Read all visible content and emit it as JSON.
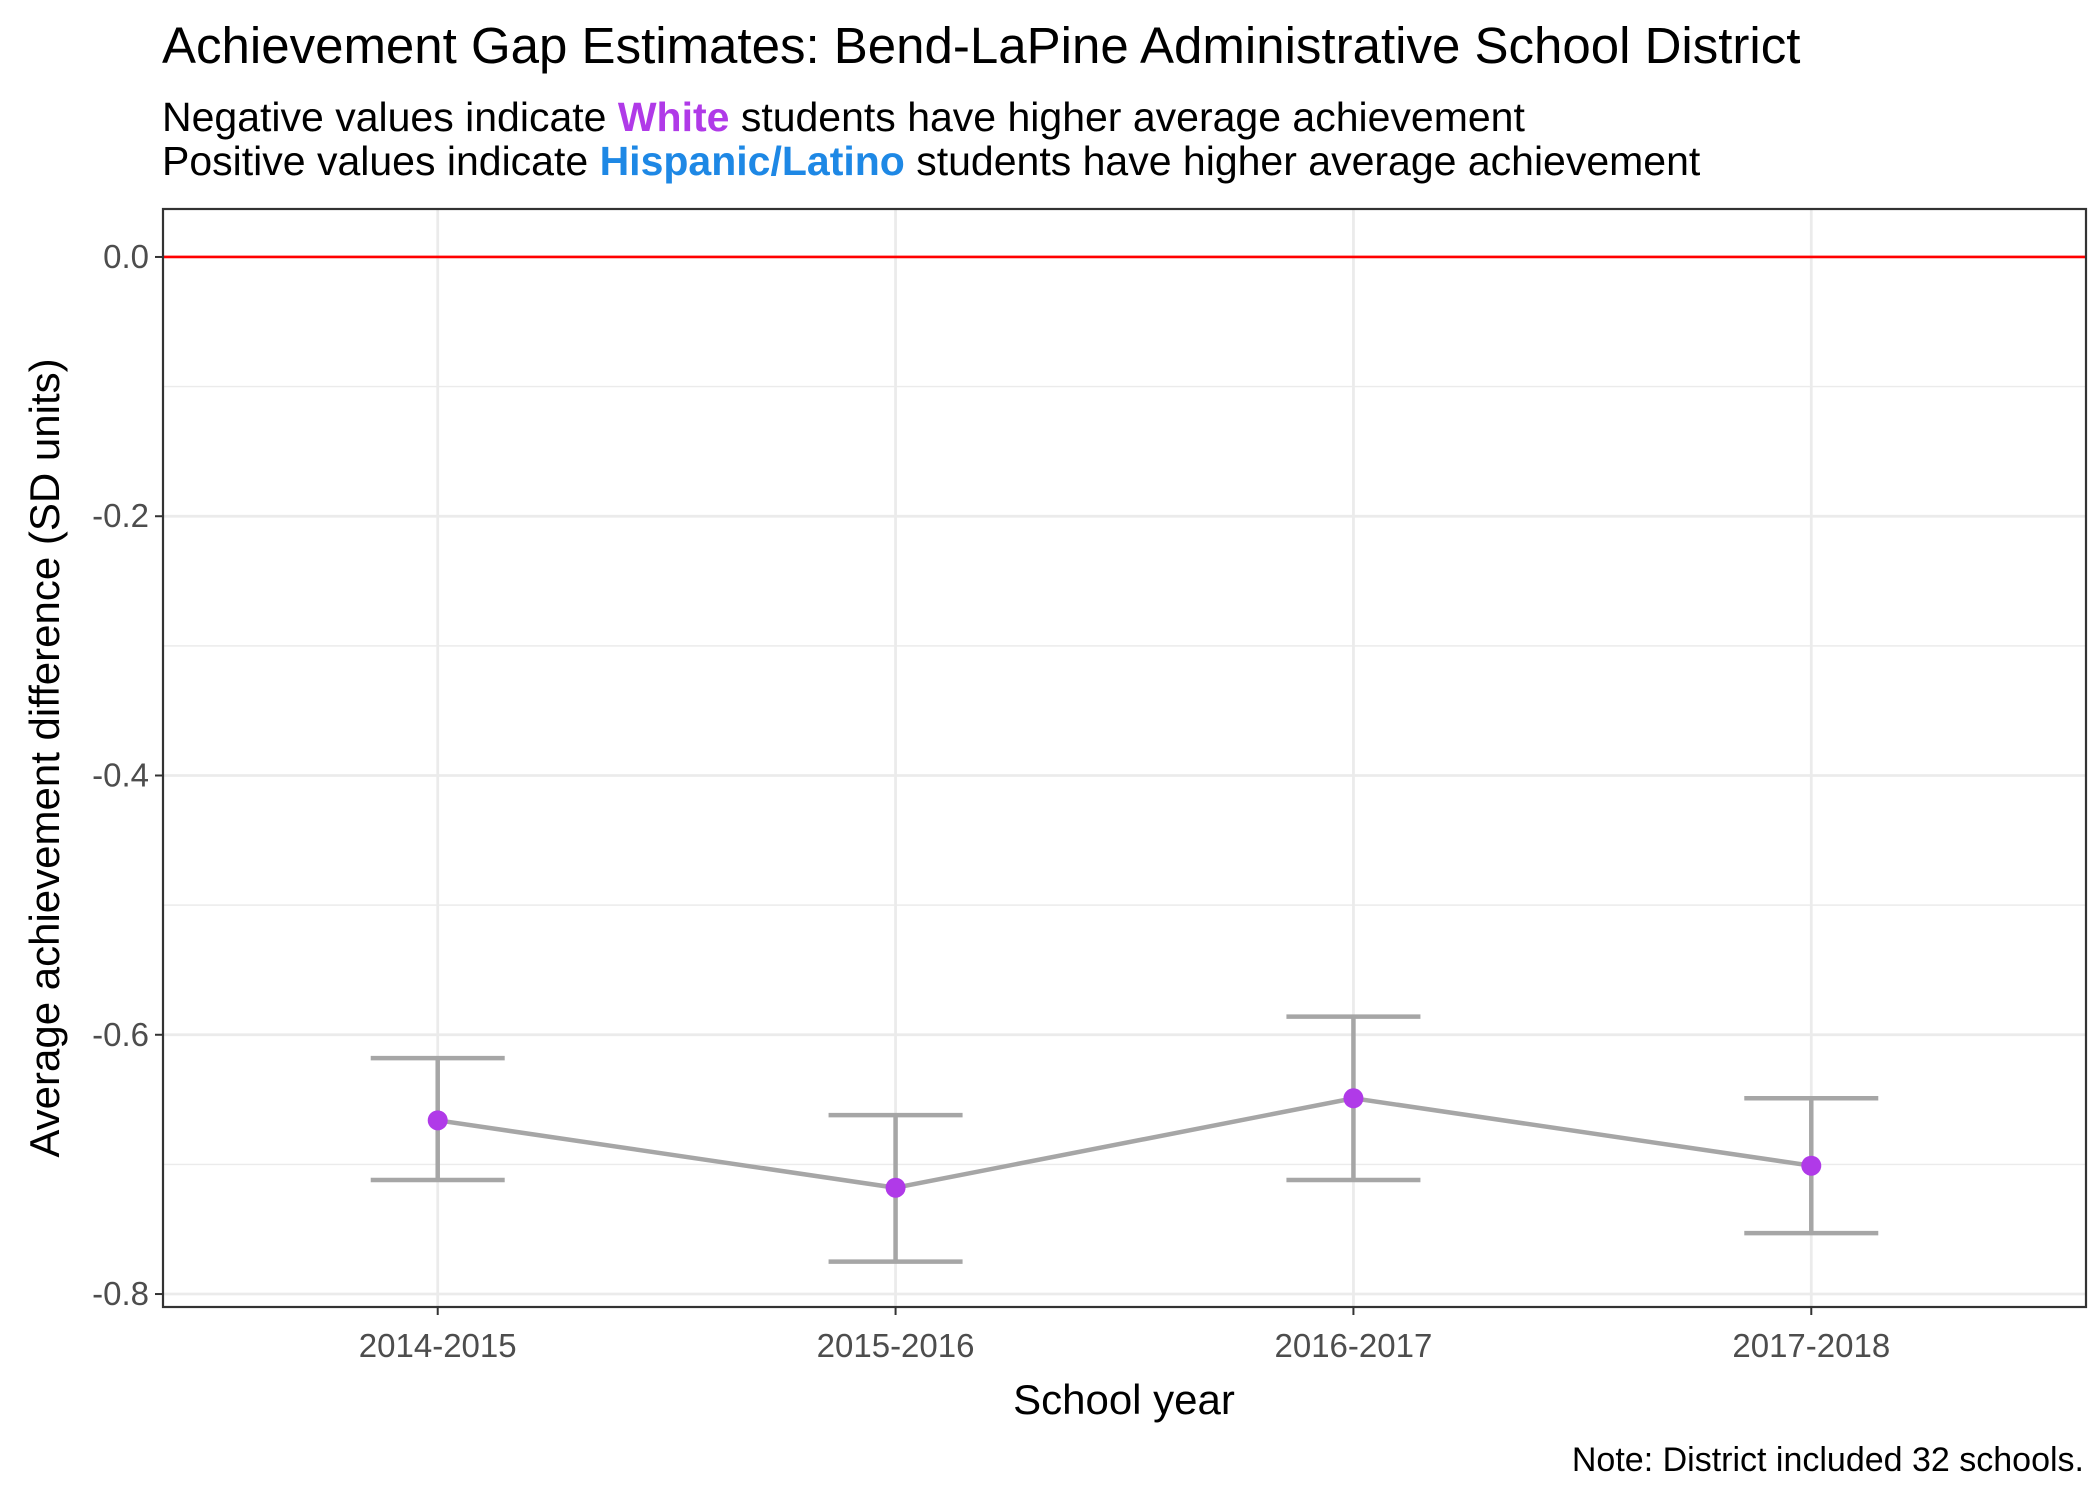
{
  "title": "Achievement Gap Estimates: Bend-LaPine Administrative School District",
  "subtitle": {
    "line1_pre": "Negative values indicate ",
    "line1_group": "White",
    "line1_post": " students have higher average achievement",
    "line2_pre": "Positive values indicate ",
    "line2_group": "Hispanic/Latino",
    "line2_post": " students have higher average achievement"
  },
  "caption": "Note: District included 32 schools.",
  "colors": {
    "white_group": "#b03ae8",
    "hispanic_group": "#1e88e5",
    "reference_line": "#ff0000",
    "point": "#b03ae8",
    "errorbar": "#a6a6a6",
    "grid": "#ebebeb"
  },
  "chart_data": {
    "type": "line",
    "xlabel": "School year",
    "ylabel": "Average achievement difference (SD units)",
    "categories": [
      "2014-2015",
      "2015-2016",
      "2016-2017",
      "2017-2018"
    ],
    "values": [
      -0.666,
      -0.718,
      -0.649,
      -0.701
    ],
    "lower": [
      -0.712,
      -0.775,
      -0.712,
      -0.753
    ],
    "upper": [
      -0.618,
      -0.662,
      -0.586,
      -0.649
    ],
    "yticks": [
      0.0,
      -0.2,
      -0.4,
      -0.6,
      -0.8
    ],
    "ytick_labels": [
      "0.0",
      "-0.2",
      "-0.4",
      "-0.6",
      "-0.8"
    ],
    "ylim": [
      -0.81,
      0.037
    ],
    "reference_line": 0.0,
    "grid": true,
    "legend": "none"
  }
}
